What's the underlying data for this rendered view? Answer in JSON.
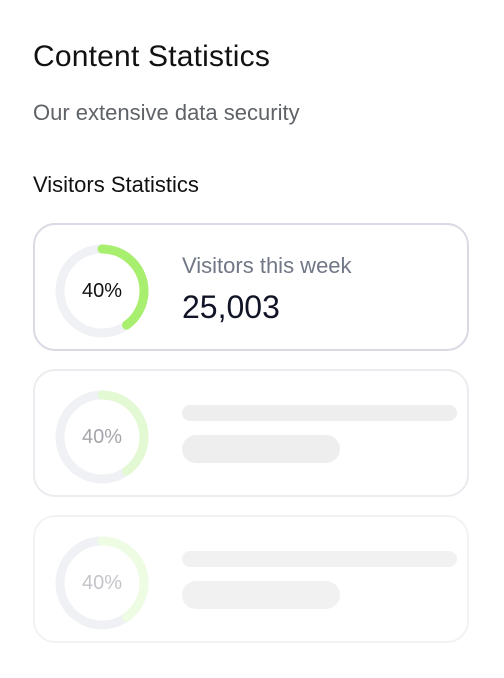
{
  "header": {
    "title": "Content Statistics",
    "subtitle": "Our extensive data security",
    "section_title": "Visitors Statistics"
  },
  "cards": [
    {
      "percent_label": "40%",
      "progress_fraction": 0.4,
      "label": "Visitors this week",
      "value": "25,003",
      "accent": "#a9ef6f"
    },
    {
      "percent_label": "40%",
      "progress_fraction": 0.4,
      "accent": "#e3f9d4"
    },
    {
      "percent_label": "40%",
      "progress_fraction": 0.4,
      "accent": "#eefce4"
    }
  ],
  "colors": {
    "track": "#f0f1f4",
    "skeleton": "#eeeeef"
  }
}
